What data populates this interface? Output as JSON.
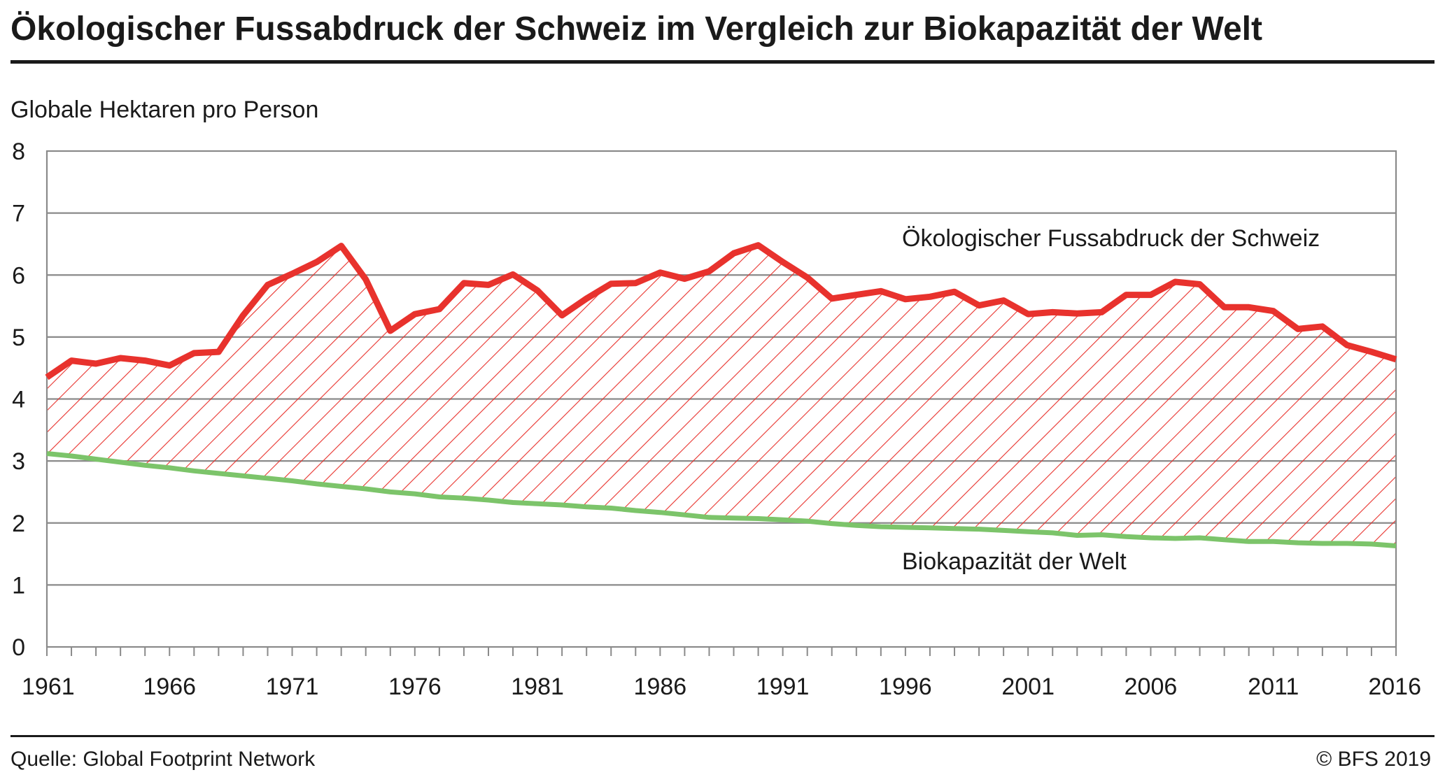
{
  "header": {
    "title": "Ökologischer Fussabdruck der Schweiz im Vergleich zur Biokapazität der Welt"
  },
  "footer": {
    "source": "Quelle: Global Footprint Network",
    "copyright": "© BFS 2019"
  },
  "colors": {
    "footprint": "#e8322d",
    "biocapacity": "#7cc46a",
    "hatch": "#e8322d",
    "grid": "#8a8a8a",
    "text": "#1a1a1a"
  },
  "chart_data": {
    "type": "line",
    "title": "Ökologischer Fussabdruck der Schweiz im Vergleich zur Biokapazität der Welt",
    "ylabel": "Globale Hektaren pro Person",
    "xlabel": "",
    "ylim": [
      0,
      8
    ],
    "yticks": [
      0,
      1,
      2,
      3,
      4,
      5,
      6,
      7,
      8
    ],
    "xlim": [
      1961,
      2016
    ],
    "xticks": [
      1961,
      1966,
      1971,
      1976,
      1981,
      1986,
      1991,
      1996,
      2001,
      2006,
      2011,
      2016
    ],
    "grid": true,
    "area_between_series": "hatched",
    "x": [
      1961,
      1962,
      1963,
      1964,
      1965,
      1966,
      1967,
      1968,
      1969,
      1970,
      1971,
      1972,
      1973,
      1974,
      1975,
      1976,
      1977,
      1978,
      1979,
      1980,
      1981,
      1982,
      1983,
      1984,
      1985,
      1986,
      1987,
      1988,
      1989,
      1990,
      1991,
      1992,
      1993,
      1994,
      1995,
      1996,
      1997,
      1998,
      1999,
      2000,
      2001,
      2002,
      2003,
      2004,
      2005,
      2006,
      2007,
      2008,
      2009,
      2010,
      2011,
      2012,
      2013,
      2014,
      2015,
      2016
    ],
    "series": [
      {
        "name": "Ökologischer Fussabdruck der Schweiz",
        "values": [
          4.35,
          4.62,
          4.57,
          4.66,
          4.62,
          4.54,
          4.74,
          4.76,
          5.35,
          5.84,
          6.02,
          6.21,
          6.47,
          5.93,
          5.1,
          5.37,
          5.45,
          5.87,
          5.84,
          6.01,
          5.75,
          5.35,
          5.62,
          5.86,
          5.87,
          6.04,
          5.94,
          6.06,
          6.35,
          6.48,
          6.21,
          5.96,
          5.62,
          5.68,
          5.74,
          5.61,
          5.65,
          5.73,
          5.51,
          5.59,
          5.37,
          5.4,
          5.38,
          5.4,
          5.68,
          5.68,
          5.89,
          5.85,
          5.48,
          5.48,
          5.42,
          5.13,
          5.17,
          4.87,
          4.76,
          4.64
        ]
      },
      {
        "name": "Biokapazität der Welt",
        "values": [
          3.12,
          3.08,
          3.03,
          2.98,
          2.93,
          2.89,
          2.84,
          2.8,
          2.76,
          2.72,
          2.68,
          2.63,
          2.59,
          2.55,
          2.5,
          2.47,
          2.42,
          2.4,
          2.37,
          2.33,
          2.31,
          2.29,
          2.26,
          2.24,
          2.2,
          2.17,
          2.13,
          2.09,
          2.08,
          2.07,
          2.05,
          2.03,
          1.99,
          1.96,
          1.94,
          1.93,
          1.92,
          1.91,
          1.9,
          1.88,
          1.86,
          1.84,
          1.8,
          1.81,
          1.78,
          1.76,
          1.75,
          1.76,
          1.73,
          1.7,
          1.7,
          1.68,
          1.67,
          1.67,
          1.66,
          1.63
        ]
      }
    ],
    "annotations": [
      {
        "text": "Ökologischer Fussabdruck der Schweiz",
        "series": 0
      },
      {
        "text": "Biokapazität der Welt",
        "series": 1
      }
    ]
  }
}
